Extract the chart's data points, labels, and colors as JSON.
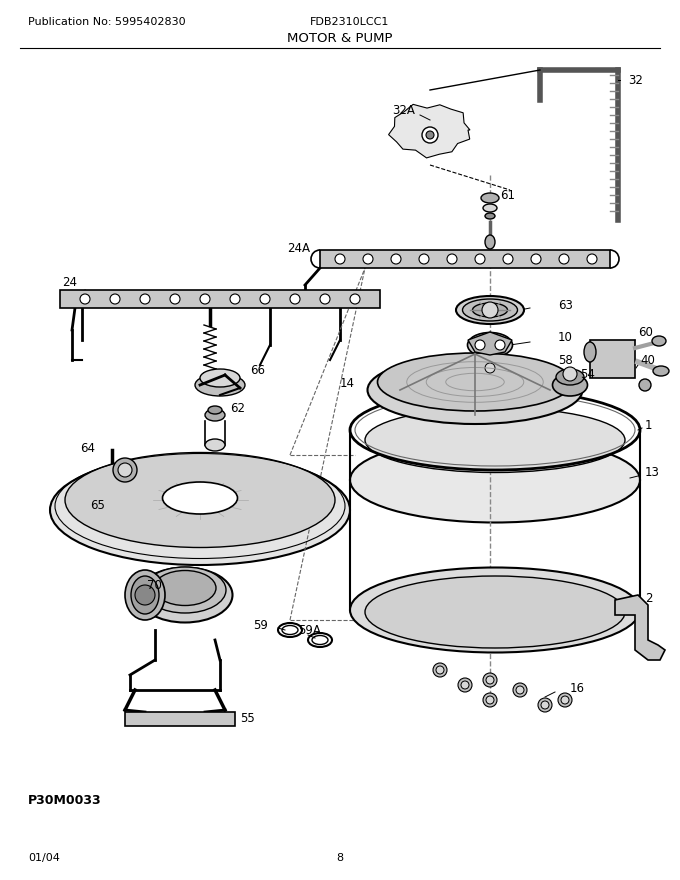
{
  "title": "MOTOR & PUMP",
  "pub_no": "Publication No: 5995402830",
  "model": "FDB2310LCC1",
  "part_code": "P30M0033",
  "date": "01/04",
  "page": "8",
  "background": "#ffffff",
  "text_color": "#000000",
  "line_color": "#000000",
  "gray_light": "#d8d8d8",
  "gray_mid": "#b0b0b0",
  "gray_dark": "#888888",
  "fig_w": 6.8,
  "fig_h": 8.8,
  "dpi": 100
}
